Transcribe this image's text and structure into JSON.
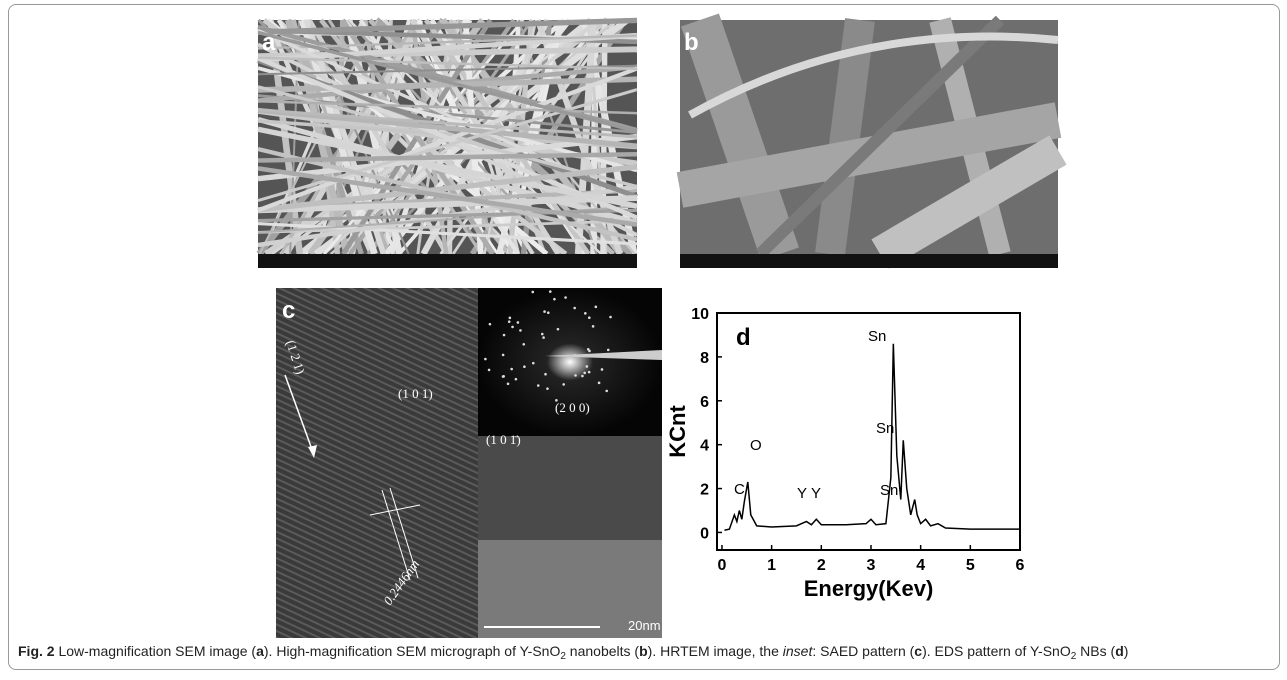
{
  "figure": {
    "panel_labels": [
      "a",
      "b",
      "c",
      "d"
    ],
    "hrtem_labels": {
      "plane": "(1 2 1)",
      "spacing": "0.2446nm"
    },
    "saed_labels": [
      "(1 0 1)",
      "(2 0 0)",
      "(1 0 1̄)"
    ],
    "scale_bar": "20nm",
    "caption": [
      "Fig. 2",
      " Low-magnification SEM image (",
      "a",
      "). High-magnification SEM micrograph of Y-SnO",
      "2",
      " nanobelts (",
      "b",
      "). HRTEM image, the ",
      "inset",
      ": SAED pattern (",
      "c",
      "). EDS pattern of Y-SnO",
      "2",
      " NBs (",
      "d",
      ")"
    ]
  },
  "chart_data": {
    "type": "line",
    "x_label": "Energy(Kev)",
    "y_label": "KCnt",
    "color": "#000000",
    "x": [
      0.05,
      0.15,
      0.25,
      0.3,
      0.35,
      0.4,
      0.45,
      0.52,
      0.58,
      0.7,
      1.0,
      1.5,
      1.7,
      1.8,
      1.9,
      2.0,
      2.5,
      2.9,
      3.0,
      3.1,
      3.3,
      3.4,
      3.45,
      3.52,
      3.6,
      3.65,
      3.72,
      3.8,
      3.88,
      3.93,
      4.0,
      4.1,
      4.2,
      4.35,
      4.5,
      5.0,
      6.0
    ],
    "values": [
      0.1,
      0.15,
      0.8,
      0.5,
      1.0,
      0.6,
      1.4,
      2.3,
      0.8,
      0.3,
      0.25,
      0.3,
      0.5,
      0.35,
      0.6,
      0.35,
      0.35,
      0.4,
      0.6,
      0.35,
      0.4,
      2.5,
      8.6,
      3.5,
      1.5,
      4.2,
      2.0,
      0.8,
      1.5,
      0.8,
      0.4,
      0.6,
      0.3,
      0.4,
      0.2,
      0.15,
      0.15
    ],
    "annotations": [
      "C",
      "O",
      "Y",
      "Y",
      "Sn",
      "Sn",
      "Sn"
    ],
    "xlim": [
      -0.1,
      6
    ],
    "ylim": [
      -0.8,
      10
    ],
    "xticks": [
      0,
      1,
      2,
      3,
      4,
      5,
      6
    ],
    "yticks": [
      0,
      2,
      4,
      6,
      8,
      10
    ]
  }
}
